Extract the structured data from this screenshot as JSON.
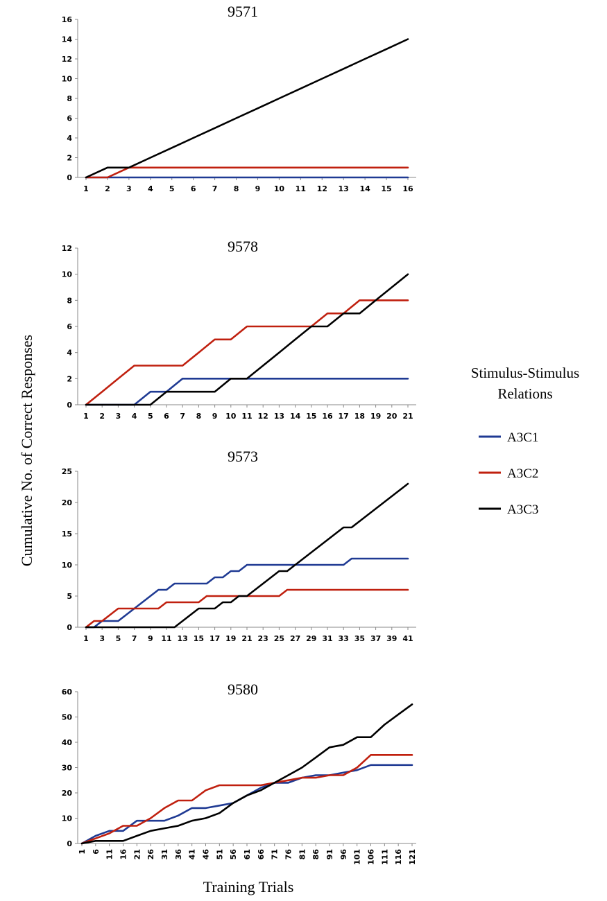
{
  "figure": {
    "ylabel": "Cumulative No. of Correct Responses",
    "xlabel": "Training Trials"
  },
  "legend": {
    "title_line1": "Stimulus-Stimulus",
    "title_line2": "Relations",
    "entries": [
      {
        "label": "A3C1",
        "color": "#1f3a93"
      },
      {
        "label": "A3C2",
        "color": "#c0200f"
      },
      {
        "label": "A3C3",
        "color": "#000000"
      }
    ]
  },
  "chart_data": [
    {
      "type": "line",
      "title": "9571",
      "ylim": [
        0,
        16
      ],
      "yticks": [
        0,
        2,
        4,
        6,
        8,
        10,
        12,
        14,
        16
      ],
      "x": [
        1,
        2,
        3,
        4,
        5,
        6,
        7,
        8,
        9,
        10,
        11,
        12,
        13,
        14,
        15,
        16
      ],
      "xtick_labels": [
        "1",
        "2",
        "3",
        "4",
        "5",
        "6",
        "7",
        "8",
        "9",
        "10",
        "11",
        "12",
        "13",
        "14",
        "15",
        "16"
      ],
      "rotate_xticks": false,
      "series": [
        {
          "name": "A3C1",
          "values": [
            0,
            0,
            0,
            0,
            0,
            0,
            0,
            0,
            0,
            0,
            0,
            0,
            0,
            0,
            0,
            0
          ]
        },
        {
          "name": "A3C2",
          "values": [
            0,
            0,
            1,
            1,
            1,
            1,
            1,
            1,
            1,
            1,
            1,
            1,
            1,
            1,
            1,
            1
          ]
        },
        {
          "name": "A3C3",
          "values": [
            0,
            1,
            1,
            2,
            3,
            4,
            5,
            6,
            7,
            8,
            9,
            10,
            11,
            12,
            13,
            14
          ]
        }
      ]
    },
    {
      "type": "line",
      "title": "9578",
      "ylim": [
        0,
        12
      ],
      "yticks": [
        0,
        2,
        4,
        6,
        8,
        10,
        12
      ],
      "x": [
        1,
        2,
        3,
        4,
        5,
        6,
        7,
        8,
        9,
        10,
        11,
        12,
        13,
        14,
        15,
        16,
        17,
        18,
        19,
        20,
        21
      ],
      "xtick_labels": [
        "1",
        "2",
        "3",
        "4",
        "5",
        "6",
        "7",
        "8",
        "9",
        "10",
        "11",
        "12",
        "13",
        "14",
        "15",
        "16",
        "17",
        "18",
        "19",
        "20",
        "21"
      ],
      "rotate_xticks": false,
      "series": [
        {
          "name": "A3C1",
          "values": [
            0,
            0,
            0,
            0,
            1,
            1,
            2,
            2,
            2,
            2,
            2,
            2,
            2,
            2,
            2,
            2,
            2,
            2,
            2,
            2,
            2
          ]
        },
        {
          "name": "A3C2",
          "values": [
            0,
            1,
            2,
            3,
            3,
            3,
            3,
            4,
            5,
            5,
            6,
            6,
            6,
            6,
            6,
            7,
            7,
            8,
            8,
            8,
            8
          ]
        },
        {
          "name": "A3C3",
          "values": [
            0,
            0,
            0,
            0,
            0,
            1,
            1,
            1,
            1,
            2,
            2,
            3,
            4,
            5,
            6,
            6,
            7,
            7,
            8,
            9,
            10
          ]
        }
      ]
    },
    {
      "type": "line",
      "title": "9573",
      "ylim": [
        0,
        25
      ],
      "yticks": [
        0,
        5,
        10,
        15,
        20,
        25
      ],
      "x": [
        1,
        2,
        3,
        4,
        5,
        6,
        7,
        8,
        9,
        10,
        11,
        12,
        13,
        14,
        15,
        16,
        17,
        18,
        19,
        20,
        21,
        22,
        23,
        24,
        25,
        26,
        27,
        28,
        29,
        30,
        31,
        32,
        33,
        34,
        35,
        36,
        37,
        38,
        39,
        40,
        41
      ],
      "xtick_labels": [
        "1",
        "3",
        "5",
        "7",
        "9",
        "11",
        "13",
        "15",
        "17",
        "19",
        "21",
        "23",
        "25",
        "27",
        "29",
        "31",
        "33",
        "35",
        "37",
        "39",
        "41"
      ],
      "xtick_values": [
        1,
        3,
        5,
        7,
        9,
        11,
        13,
        15,
        17,
        19,
        21,
        23,
        25,
        27,
        29,
        31,
        33,
        35,
        37,
        39,
        41
      ],
      "rotate_xticks": false,
      "series": [
        {
          "name": "A3C1",
          "values": [
            0,
            0,
            1,
            1,
            1,
            2,
            3,
            4,
            5,
            6,
            6,
            7,
            7,
            7,
            7,
            7,
            8,
            8,
            9,
            9,
            10,
            10,
            10,
            10,
            10,
            10,
            10,
            10,
            10,
            10,
            10,
            10,
            10,
            11,
            11,
            11,
            11,
            11,
            11,
            11,
            11
          ]
        },
        {
          "name": "A3C2",
          "values": [
            0,
            1,
            1,
            2,
            3,
            3,
            3,
            3,
            3,
            3,
            4,
            4,
            4,
            4,
            4,
            5,
            5,
            5,
            5,
            5,
            5,
            5,
            5,
            5,
            5,
            6,
            6,
            6,
            6,
            6,
            6,
            6,
            6,
            6,
            6,
            6,
            6,
            6,
            6,
            6,
            6
          ]
        },
        {
          "name": "A3C3",
          "values": [
            0,
            0,
            0,
            0,
            0,
            0,
            0,
            0,
            0,
            0,
            0,
            0,
            1,
            2,
            3,
            3,
            3,
            4,
            4,
            5,
            5,
            6,
            7,
            8,
            9,
            9,
            10,
            11,
            12,
            13,
            14,
            15,
            16,
            16,
            17,
            18,
            19,
            20,
            21,
            22,
            23
          ]
        }
      ]
    },
    {
      "type": "line",
      "title": "9580",
      "ylim": [
        0,
        60
      ],
      "yticks": [
        0,
        10,
        20,
        30,
        40,
        50,
        60
      ],
      "x": [
        1,
        6,
        11,
        16,
        21,
        26,
        31,
        36,
        41,
        46,
        51,
        56,
        61,
        66,
        71,
        76,
        81,
        86,
        91,
        96,
        101,
        106,
        111,
        116,
        121
      ],
      "xtick_labels": [
        "1",
        "6",
        "11",
        "16",
        "21",
        "26",
        "31",
        "36",
        "41",
        "46",
        "51",
        "56",
        "61",
        "66",
        "71",
        "76",
        "81",
        "86",
        "91",
        "96",
        "101",
        "106",
        "111",
        "116",
        "121"
      ],
      "xtick_values": [
        1,
        6,
        11,
        16,
        21,
        26,
        31,
        36,
        41,
        46,
        51,
        56,
        61,
        66,
        71,
        76,
        81,
        86,
        91,
        96,
        101,
        106,
        111,
        116,
        121
      ],
      "xlim": [
        1,
        121
      ],
      "rotate_xticks": true,
      "series": [
        {
          "name": "A3C1",
          "values": [
            0,
            3,
            5,
            5,
            9,
            9,
            9,
            11,
            14,
            14,
            15,
            16,
            19,
            22,
            24,
            24,
            26,
            27,
            27,
            28,
            29,
            31,
            31,
            31,
            31
          ]
        },
        {
          "name": "A3C2",
          "values": [
            0,
            2,
            4,
            7,
            7,
            10,
            14,
            17,
            17,
            21,
            23,
            23,
            23,
            23,
            24,
            25,
            26,
            26,
            27,
            27,
            30,
            35,
            35,
            35,
            35
          ]
        },
        {
          "name": "A3C3",
          "values": [
            0,
            1,
            1,
            1,
            3,
            5,
            6,
            7,
            9,
            10,
            12,
            16,
            19,
            21,
            24,
            27,
            30,
            34,
            38,
            39,
            42,
            42,
            47,
            51,
            55
          ]
        }
      ]
    }
  ]
}
